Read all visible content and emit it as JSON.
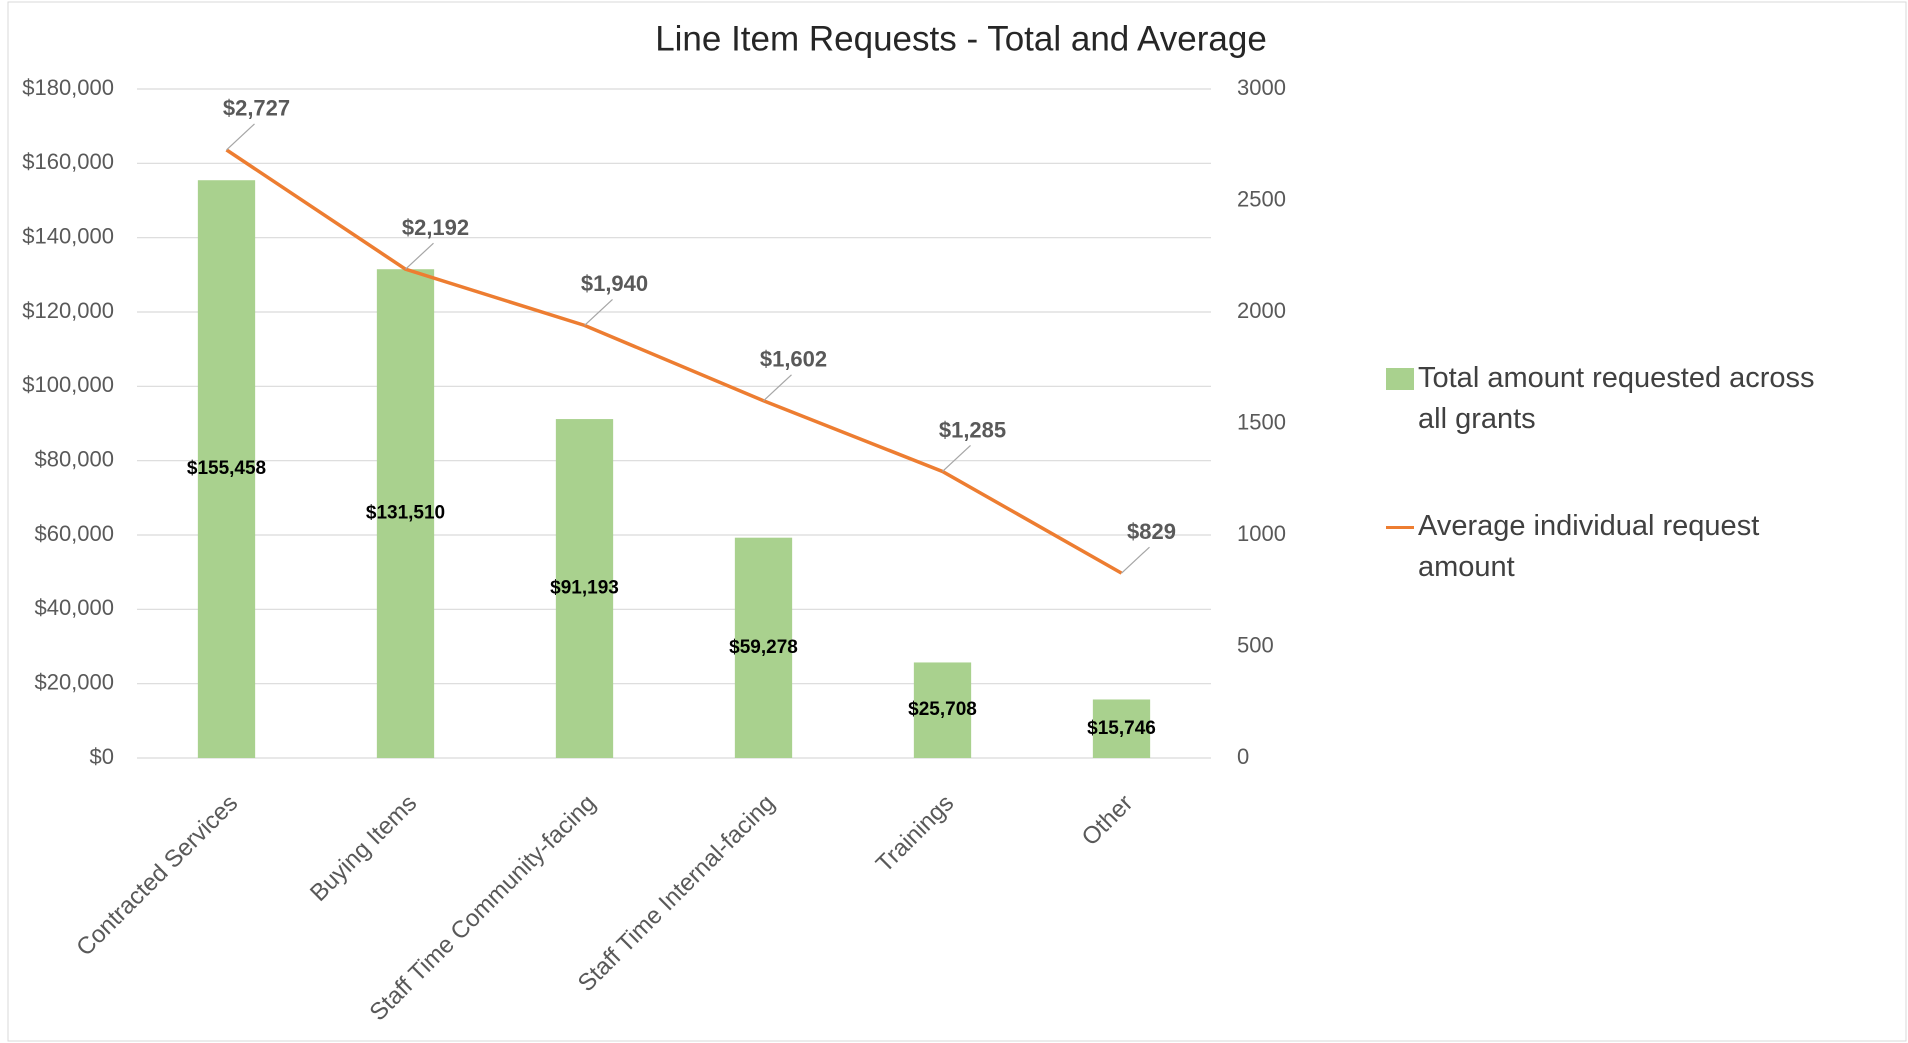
{
  "chart_data": {
    "type": "bar_line",
    "title": "Line Item Requests - Total and Average",
    "categories": [
      "Contracted Services",
      "Buying Items",
      "Staff Time Community-facing",
      "Staff Time Internal-facing",
      "Trainings",
      "Other"
    ],
    "series": [
      {
        "name": "Total amount requested across all grants",
        "type": "bar",
        "color": "#a9d18e",
        "values": [
          155458,
          131510,
          91193,
          59278,
          25708,
          15746
        ],
        "value_labels": [
          "$155,458",
          "$131,510",
          "$91,193",
          "$59,278",
          "$25,708",
          "$15,746"
        ]
      },
      {
        "name": "Average individual request amount",
        "type": "line",
        "axis": "y2",
        "color": "#ed7d31",
        "values": [
          2727,
          2192,
          1940,
          1602,
          1285,
          829
        ],
        "value_labels": [
          "$2,727",
          "$2,192",
          "$1,940",
          "$1,602",
          "$1,285",
          "$829"
        ]
      }
    ],
    "ylim": [
      0,
      180000
    ],
    "yticks": [
      {
        "value": 0,
        "label": "$0"
      },
      {
        "value": 20000,
        "label": "$20,000"
      },
      {
        "value": 40000,
        "label": "$40,000"
      },
      {
        "value": 60000,
        "label": "$60,000"
      },
      {
        "value": 80000,
        "label": "$80,000"
      },
      {
        "value": 100000,
        "label": "$100,000"
      },
      {
        "value": 120000,
        "label": "$120,000"
      },
      {
        "value": 140000,
        "label": "$140,000"
      },
      {
        "value": 160000,
        "label": "$160,000"
      },
      {
        "value": 180000,
        "label": "$180,000"
      }
    ],
    "y2lim": [
      0,
      3000
    ],
    "y2ticks": [
      0,
      500,
      1000,
      1500,
      2000,
      2500,
      3000
    ],
    "grid": true,
    "legend": "right"
  }
}
